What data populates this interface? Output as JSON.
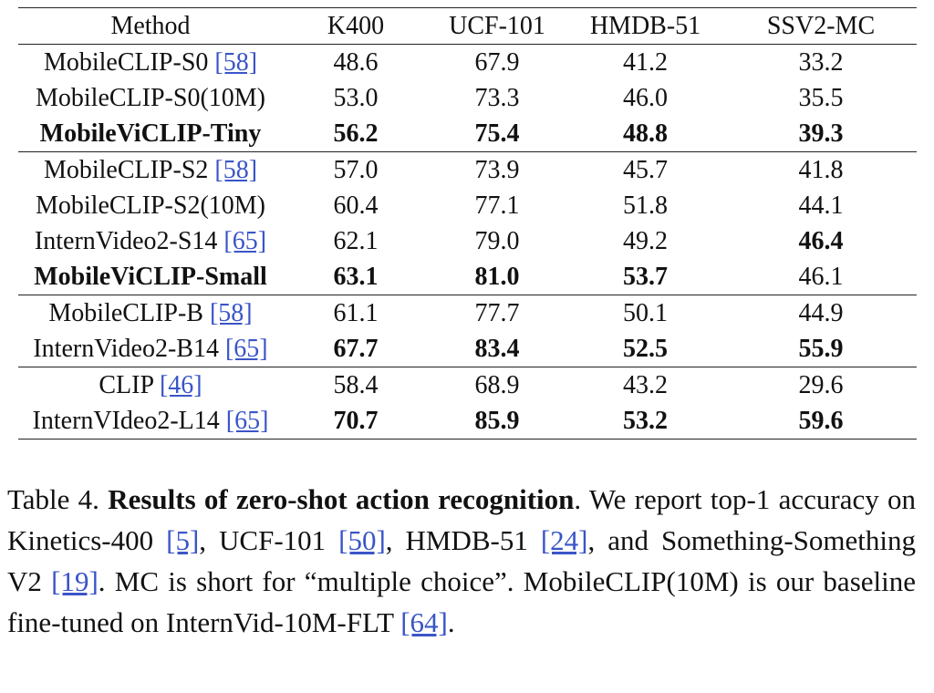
{
  "table": {
    "headers": [
      "Method",
      "K400",
      "UCF-101",
      "HMDB-51",
      "SSV2-MC"
    ],
    "groups": [
      [
        {
          "method": "MobileCLIP-S0",
          "cite": "[58]",
          "bold_method": false,
          "values": [
            "48.6",
            "67.9",
            "41.2",
            "33.2"
          ],
          "bold": [
            false,
            false,
            false,
            false
          ]
        },
        {
          "method": "MobileCLIP-S0(10M)",
          "cite": "",
          "bold_method": false,
          "values": [
            "53.0",
            "73.3",
            "46.0",
            "35.5"
          ],
          "bold": [
            false,
            false,
            false,
            false
          ]
        },
        {
          "method": "MobileViCLIP-Tiny",
          "cite": "",
          "bold_method": true,
          "values": [
            "56.2",
            "75.4",
            "48.8",
            "39.3"
          ],
          "bold": [
            true,
            true,
            true,
            true
          ]
        }
      ],
      [
        {
          "method": "MobileCLIP-S2",
          "cite": "[58]",
          "bold_method": false,
          "values": [
            "57.0",
            "73.9",
            "45.7",
            "41.8"
          ],
          "bold": [
            false,
            false,
            false,
            false
          ]
        },
        {
          "method": "MobileCLIP-S2(10M)",
          "cite": "",
          "bold_method": false,
          "values": [
            "60.4",
            "77.1",
            "51.8",
            "44.1"
          ],
          "bold": [
            false,
            false,
            false,
            false
          ]
        },
        {
          "method": "InternVideo2-S14",
          "cite": "[65]",
          "bold_method": false,
          "values": [
            "62.1",
            "79.0",
            "49.2",
            "46.4"
          ],
          "bold": [
            false,
            false,
            false,
            true
          ]
        },
        {
          "method": "MobileViCLIP-Small",
          "cite": "",
          "bold_method": true,
          "values": [
            "63.1",
            "81.0",
            "53.7",
            "46.1"
          ],
          "bold": [
            true,
            true,
            true,
            false
          ]
        }
      ],
      [
        {
          "method": "MobileCLIP-B",
          "cite": "[58]",
          "bold_method": false,
          "values": [
            "61.1",
            "77.7",
            "50.1",
            "44.9"
          ],
          "bold": [
            false,
            false,
            false,
            false
          ]
        },
        {
          "method": "InternVideo2-B14",
          "cite": "[65]",
          "bold_method": false,
          "values": [
            "67.7",
            "83.4",
            "52.5",
            "55.9"
          ],
          "bold": [
            true,
            true,
            true,
            true
          ]
        }
      ],
      [
        {
          "method": "CLIP",
          "cite": "[46]",
          "bold_method": false,
          "values": [
            "58.4",
            "68.9",
            "43.2",
            "29.6"
          ],
          "bold": [
            false,
            false,
            false,
            false
          ]
        },
        {
          "method": "InternVIdeo2-L14",
          "cite": "[65]",
          "bold_method": false,
          "values": [
            "70.7",
            "85.9",
            "53.2",
            "59.6"
          ],
          "bold": [
            true,
            true,
            true,
            true
          ]
        }
      ]
    ]
  },
  "caption": {
    "label": "Table 4.",
    "title": "Results of zero-shot action recognition",
    "segments": [
      {
        "text": ". We report top-1 accuracy on Kinetics-400 ",
        "cite": false
      },
      {
        "text": "[5]",
        "cite": true
      },
      {
        "text": ", UCF-101 ",
        "cite": false
      },
      {
        "text": "[50]",
        "cite": true
      },
      {
        "text": ", HMDB-51 ",
        "cite": false
      },
      {
        "text": "[24]",
        "cite": true
      },
      {
        "text": ", and Something-Something V2 ",
        "cite": false
      },
      {
        "text": "[19]",
        "cite": true
      },
      {
        "text": ". MC is short for “multiple choice”. MobileCLIP(10M) is our baseline fine-tuned on InternVid-10M-FLT ",
        "cite": false
      },
      {
        "text": "[64]",
        "cite": true
      },
      {
        "text": ".",
        "cite": false
      }
    ]
  }
}
